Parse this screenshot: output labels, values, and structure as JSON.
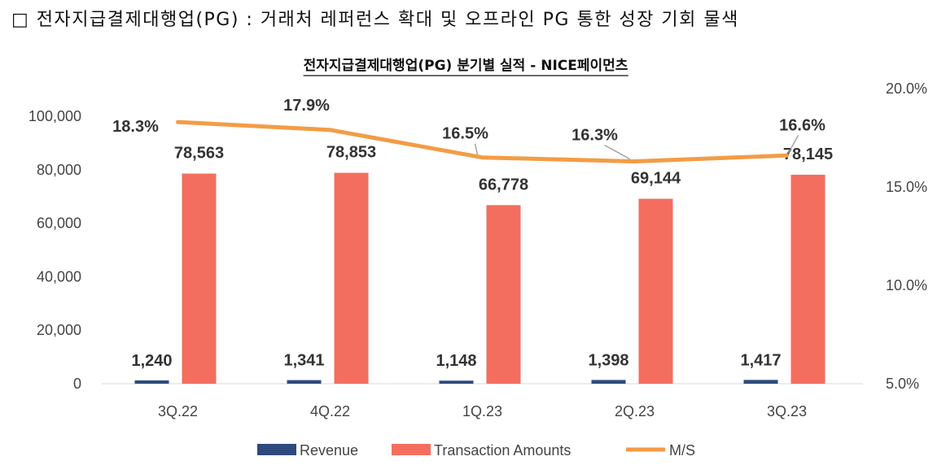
{
  "heading": "□ 전자지급결제대행업(PG) : 거래처 레퍼런스 확대 및 오프라인 PG 통한 성장 기회 물색",
  "chart_data": {
    "type": "bar",
    "title": "전자지급결제대행업(PG) 분기별 실적 - NICE페이먼츠",
    "categories": [
      "3Q.22",
      "4Q.22",
      "1Q.23",
      "2Q.23",
      "3Q.23"
    ],
    "series": [
      {
        "name": "Revenue",
        "type": "bar",
        "axis": "left",
        "color": "#2E4A7D",
        "values": [
          1240,
          1341,
          1148,
          1398,
          1417
        ],
        "labels": [
          "1,240",
          "1,341",
          "1,148",
          "1,398",
          "1,417"
        ]
      },
      {
        "name": "Transaction Amounts",
        "type": "bar",
        "axis": "left",
        "color": "#F36E5E",
        "values": [
          78563,
          78853,
          66778,
          69144,
          78145
        ],
        "labels": [
          "78,563",
          "78,853",
          "66,778",
          "69,144",
          "78,145"
        ]
      },
      {
        "name": "M/S",
        "type": "line",
        "axis": "right",
        "color": "#F39C45",
        "values": [
          18.3,
          17.9,
          16.5,
          16.3,
          16.6
        ],
        "labels": [
          "18.3%",
          "17.9%",
          "16.5%",
          "16.3%",
          "16.6%"
        ]
      }
    ],
    "left_axis": {
      "min": 0,
      "max": 100000,
      "ticks": [
        "0",
        "20,000",
        "40,000",
        "60,000",
        "80,000",
        "100,000"
      ]
    },
    "right_axis": {
      "min": 5,
      "max": 20,
      "ticks": [
        "5.0%",
        "10.0%",
        "15.0%",
        "20.0%"
      ]
    },
    "grid": false,
    "legend_position": "bottom"
  }
}
